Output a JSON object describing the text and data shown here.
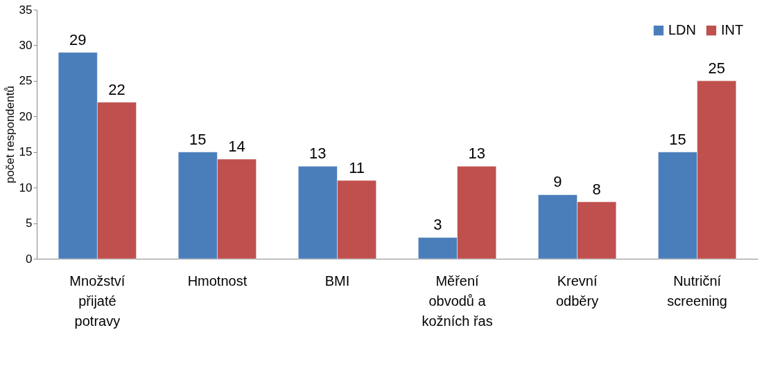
{
  "chart_data": {
    "type": "bar",
    "ylabel": "počet respondentů",
    "categories": [
      "Množství přijaté potravy",
      "Hmotnost",
      "BMI",
      "Měření obvodů a kožních řas",
      "Krevní odběry",
      "Nutriční screening"
    ],
    "series": [
      {
        "name": "LDN",
        "color": "#4a7ebb",
        "values": [
          29,
          15,
          13,
          3,
          9,
          15
        ]
      },
      {
        "name": "INT",
        "color": "#c0504d",
        "values": [
          22,
          14,
          11,
          13,
          8,
          25
        ]
      }
    ],
    "ylim": [
      0,
      35
    ],
    "yticks": [
      0,
      5,
      10,
      15,
      20,
      25,
      30,
      35
    ],
    "grid": false,
    "legend": "top right",
    "data_labels": true
  }
}
